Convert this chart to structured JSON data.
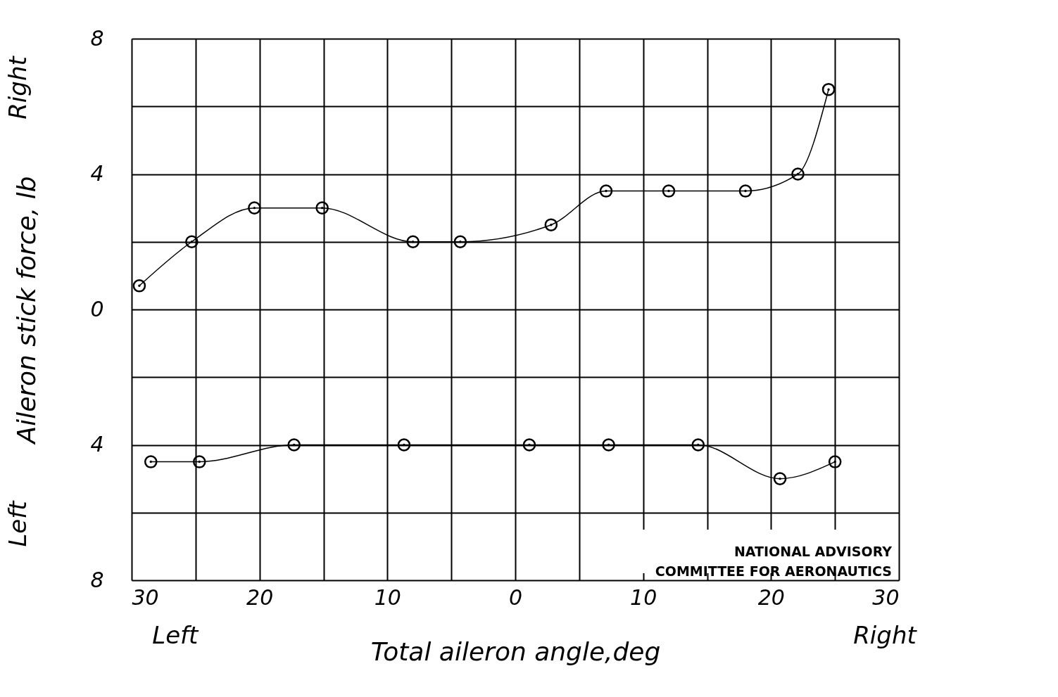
{
  "chart_data": {
    "type": "line",
    "xlabel": "Total aileron angle,deg",
    "ylabel": "Aileron stick force, lb",
    "xlim": [
      -30,
      30
    ],
    "ylim": [
      -8,
      8
    ],
    "xticks": [
      {
        "value": -30,
        "label": "30"
      },
      {
        "value": -25,
        "label": null
      },
      {
        "value": -20,
        "label": "20"
      },
      {
        "value": -15,
        "label": null
      },
      {
        "value": -10,
        "label": "10"
      },
      {
        "value": -5,
        "label": null
      },
      0,
      {
        "value": 5,
        "label": null
      },
      10,
      {
        "value": 15,
        "label": null
      },
      20,
      {
        "value": 25,
        "label": null
      },
      30
    ],
    "yticks": [
      {
        "value": -8,
        "label": "8"
      },
      {
        "value": -6,
        "label": null
      },
      {
        "value": -4,
        "label": "4"
      },
      {
        "value": -2,
        "label": null
      },
      0,
      {
        "value": 2,
        "label": null
      },
      4,
      {
        "value": 6,
        "label": null
      },
      8
    ],
    "grid": true,
    "marker": "circle",
    "line_style": "solid",
    "series": [
      {
        "color": "#000000",
        "x": [
          -29.4,
          -25.3,
          -20.4,
          -15.1,
          -8.0,
          -4.3,
          2.8,
          7.1,
          12.0,
          18.0,
          22.1,
          24.5
        ],
        "values": [
          0.7,
          2.0,
          3.0,
          3.0,
          2.0,
          2.0,
          2.5,
          3.5,
          3.5,
          3.5,
          4.0,
          6.5
        ]
      },
      {
        "color": "#000000",
        "x": [
          -28.5,
          -24.7,
          -17.3,
          -8.7,
          1.1,
          7.3,
          14.3,
          20.7,
          25.0
        ],
        "values": [
          -4.5,
          -4.5,
          -4.0,
          -4.0,
          -4.0,
          -4.0,
          -4.0,
          -5.0,
          -4.5
        ]
      }
    ],
    "annotations": [
      "Left",
      "Right",
      "Right",
      "Left",
      "NATIONAL ADVISORY\nCOMMITTEE FOR AERONAUTICS"
    ]
  }
}
